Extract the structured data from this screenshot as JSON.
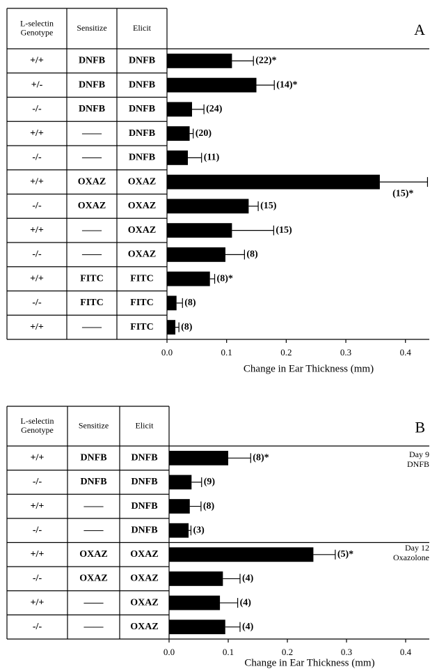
{
  "chart_data": [
    {
      "type": "hbar",
      "panel_label": "A",
      "table": {
        "headers": [
          [
            "L-selectin",
            "Genotype"
          ],
          [
            "Sensitize"
          ],
          [
            "Elicit"
          ]
        ],
        "rows": [
          [
            "+/+",
            "DNFB",
            "DNFB"
          ],
          [
            "+/-",
            "DNFB",
            "DNFB"
          ],
          [
            "-/-",
            "DNFB",
            "DNFB"
          ],
          [
            "+/+",
            "——",
            "DNFB"
          ],
          [
            "-/-",
            "——",
            "DNFB"
          ],
          [
            "+/+",
            "OXAZ",
            "OXAZ"
          ],
          [
            "-/-",
            "OXAZ",
            "OXAZ"
          ],
          [
            "+/+",
            "——",
            "OXAZ"
          ],
          [
            "-/-",
            "——",
            "OXAZ"
          ],
          [
            "+/+",
            "FITC",
            "FITC"
          ],
          [
            "-/-",
            "FITC",
            "FITC"
          ],
          [
            "+/+",
            "——",
            "FITC"
          ]
        ]
      },
      "values": [
        0.109,
        0.15,
        0.042,
        0.038,
        0.035,
        0.357,
        0.137,
        0.109,
        0.098,
        0.072,
        0.016,
        0.014
      ],
      "errors": [
        0.036,
        0.03,
        0.02,
        0.006,
        0.023,
        0.08,
        0.016,
        0.07,
        0.032,
        0.008,
        0.01,
        0.006
      ],
      "n_labels": [
        "(22)*",
        "(14)*",
        "(24)",
        "(20)",
        "(11)",
        "(15)*",
        "(15)",
        "(15)",
        "(8)",
        "(8)*",
        "(8)",
        "(8)"
      ],
      "color": "#000000",
      "xlabel": "Change in Ear Thickness (mm)",
      "xlim": [
        0,
        0.44
      ],
      "xticks": [
        {
          "value": 0,
          "label": "0.0"
        },
        0.1,
        0.2,
        0.3,
        0.4
      ]
    },
    {
      "type": "hbar",
      "panel_label": "B",
      "table": {
        "headers": [
          [
            "L-selectin",
            "Genotype"
          ],
          [
            "Sensitize"
          ],
          [
            "Elicit"
          ]
        ],
        "rows": [
          [
            "+/+",
            "DNFB",
            "DNFB"
          ],
          [
            "-/-",
            "DNFB",
            "DNFB"
          ],
          [
            "+/+",
            "——",
            "DNFB"
          ],
          [
            "-/-",
            "——",
            "DNFB"
          ],
          [
            "+/+",
            "OXAZ",
            "OXAZ"
          ],
          [
            "-/-",
            "OXAZ",
            "OXAZ"
          ],
          [
            "+/+",
            "——",
            "OXAZ"
          ],
          [
            "-/-",
            "——",
            "OXAZ"
          ]
        ]
      },
      "values": [
        0.1,
        0.038,
        0.035,
        0.033,
        0.244,
        0.091,
        0.086,
        0.095
      ],
      "errors": [
        0.038,
        0.017,
        0.019,
        0.004,
        0.037,
        0.029,
        0.03,
        0.025
      ],
      "n_labels": [
        "(8)*",
        "(9)",
        "(8)",
        "(3)",
        "(5)*",
        "(4)",
        "(4)",
        "(4)"
      ],
      "annotations": [
        [
          "Day 9",
          "DNFB"
        ],
        [
          "Day 12",
          "Oxazolone"
        ]
      ],
      "color": "#000000",
      "xlabel": "Change in Ear Thickness (mm)",
      "xlim": [
        0,
        0.44
      ],
      "xticks": [
        {
          "value": 0,
          "label": "0.0"
        },
        0.1,
        0.2,
        0.3,
        0.4
      ]
    }
  ]
}
